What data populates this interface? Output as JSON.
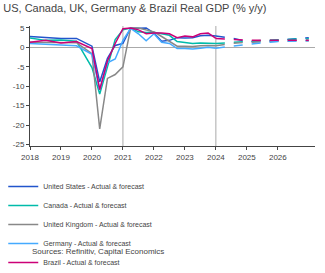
{
  "chart_data": {
    "type": "line",
    "title": "US, Canada, UK, Germany & Brazil Real GDP (% y/y)",
    "annotations": [
      "Sources: Refinitiv, Capital Economics"
    ],
    "xlim": [
      2018,
      2027.2
    ],
    "xticks": [
      2018,
      2019,
      2020,
      2021,
      2022,
      2023,
      2024,
      2025,
      2026
    ],
    "ylim": [
      -25.5,
      5.5
    ],
    "yticks": [
      -25,
      -20,
      -15,
      -10,
      -5,
      0,
      5
    ],
    "grid": false,
    "vlines": [
      2021.0,
      2024.0
    ],
    "series": [
      {
        "name": "United States - Actual & forecast",
        "color": "#2255cc",
        "line_style": "solid",
        "x": [
          2018.0,
          2018.5,
          2019.0,
          2019.5,
          2020.0,
          2020.25,
          2020.5,
          2020.75,
          2021.0,
          2021.25,
          2021.5,
          2021.75,
          2022.0,
          2022.25,
          2022.5,
          2022.75,
          2023.0,
          2023.25,
          2023.5,
          2023.75,
          2024.0
        ],
        "values": [
          2.8,
          2.5,
          2.3,
          2.3,
          0.3,
          -8.9,
          -2.8,
          0.5,
          1.0,
          5.0,
          4.9,
          5.0,
          3.7,
          1.6,
          1.8,
          2.5,
          2.4,
          2.5,
          3.0,
          3.1,
          2.9
        ]
      },
      {
        "color": "#2255cc",
        "line_style": "dashed",
        "x": [
          2024.0,
          2024.5,
          2025.0,
          2025.5,
          2026.0,
          2026.5,
          2027.0
        ],
        "values": [
          2.9,
          2.4,
          1.5,
          1.5,
          1.8,
          2.2,
          2.5
        ]
      },
      {
        "name": "Canada - Actual & forecast",
        "color": "#00bbaa",
        "line_style": "solid",
        "x": [
          2018.0,
          2018.5,
          2019.0,
          2019.5,
          2020.0,
          2020.25,
          2020.5,
          2020.75,
          2021.0,
          2021.25,
          2021.5,
          2021.75,
          2022.0,
          2022.25,
          2022.5,
          2022.75,
          2023.0,
          2023.25,
          2023.5,
          2023.75,
          2024.0
        ],
        "values": [
          2.4,
          1.8,
          1.9,
          1.6,
          -5.2,
          -12.0,
          -5.0,
          2.0,
          4.5,
          5.0,
          4.0,
          3.8,
          3.9,
          3.5,
          3.1,
          1.5,
          1.2,
          1.0,
          1.1,
          1.0,
          1.0
        ]
      },
      {
        "color": "#00bbaa",
        "line_style": "dashed",
        "x": [
          2024.0,
          2024.5,
          2025.0,
          2025.5,
          2026.0,
          2026.5,
          2027.0
        ],
        "values": [
          1.0,
          1.2,
          1.5,
          1.8,
          2.0,
          2.1,
          2.2
        ]
      },
      {
        "name": "United Kingdom - Actual & forecast",
        "color": "#888888",
        "line_style": "solid",
        "x": [
          2018.0,
          2018.5,
          2019.0,
          2019.5,
          2020.0,
          2020.25,
          2020.5,
          2020.75,
          2021.0,
          2021.25,
          2021.5,
          2021.75,
          2022.0,
          2022.25,
          2022.5,
          2022.75,
          2023.0,
          2023.25,
          2023.5,
          2023.75,
          2024.0
        ],
        "values": [
          1.3,
          1.3,
          1.3,
          1.2,
          -1.6,
          -21.0,
          -8.0,
          -7.0,
          -5.0,
          5.0,
          5.0,
          4.5,
          4.0,
          2.8,
          1.5,
          0.3,
          0.3,
          0.2,
          0.4,
          0.5,
          0.4
        ]
      },
      {
        "color": "#888888",
        "line_style": "dashed",
        "x": [
          2024.0,
          2024.5,
          2025.0,
          2025.5,
          2026.0,
          2026.5,
          2027.0
        ],
        "values": [
          0.4,
          1.0,
          1.3,
          1.5,
          1.6,
          1.7,
          1.7
        ]
      },
      {
        "name": "Germany - Actual & forecast",
        "color": "#44aaff",
        "line_style": "solid",
        "x": [
          2018.0,
          2018.5,
          2019.0,
          2019.5,
          2020.0,
          2020.25,
          2020.5,
          2020.75,
          2021.0,
          2021.25,
          2021.5,
          2021.75,
          2022.0,
          2022.25,
          2022.5,
          2022.75,
          2023.0,
          2023.25,
          2023.5,
          2023.75,
          2024.0
        ],
        "values": [
          1.0,
          0.8,
          0.5,
          0.4,
          -1.8,
          -11.0,
          -4.0,
          -3.0,
          1.8,
          4.9,
          3.5,
          1.7,
          3.5,
          1.3,
          1.0,
          -0.3,
          -0.3,
          -0.4,
          -0.2,
          0.0,
          -0.2
        ]
      },
      {
        "color": "#44aaff",
        "line_style": "dashed",
        "x": [
          2024.0,
          2024.5,
          2025.0,
          2025.5,
          2026.0,
          2026.5,
          2027.0
        ],
        "values": [
          -0.2,
          0.3,
          0.8,
          1.2,
          1.5,
          1.6,
          1.7
        ]
      },
      {
        "name": "Brazil - Actual & forecast",
        "color": "#cc0077",
        "line_style": "solid",
        "x": [
          2018.0,
          2018.5,
          2019.0,
          2019.5,
          2020.0,
          2020.25,
          2020.5,
          2020.75,
          2021.0,
          2021.25,
          2021.5,
          2021.75,
          2022.0,
          2022.25,
          2022.5,
          2022.75,
          2023.0,
          2023.25,
          2023.5,
          2023.75,
          2024.0
        ],
        "values": [
          1.3,
          1.8,
          1.1,
          1.5,
          -0.3,
          -10.9,
          -3.5,
          1.0,
          4.8,
          5.0,
          4.5,
          3.5,
          3.7,
          3.7,
          3.5,
          2.5,
          2.9,
          2.7,
          3.5,
          3.7,
          2.3
        ]
      },
      {
        "color": "#cc0077",
        "line_style": "dashed",
        "x": [
          2024.0,
          2024.5,
          2025.0,
          2025.5,
          2026.0,
          2026.5,
          2027.0
        ],
        "values": [
          2.3,
          2.0,
          1.8,
          1.8,
          1.8,
          1.8,
          1.8
        ]
      }
    ]
  }
}
